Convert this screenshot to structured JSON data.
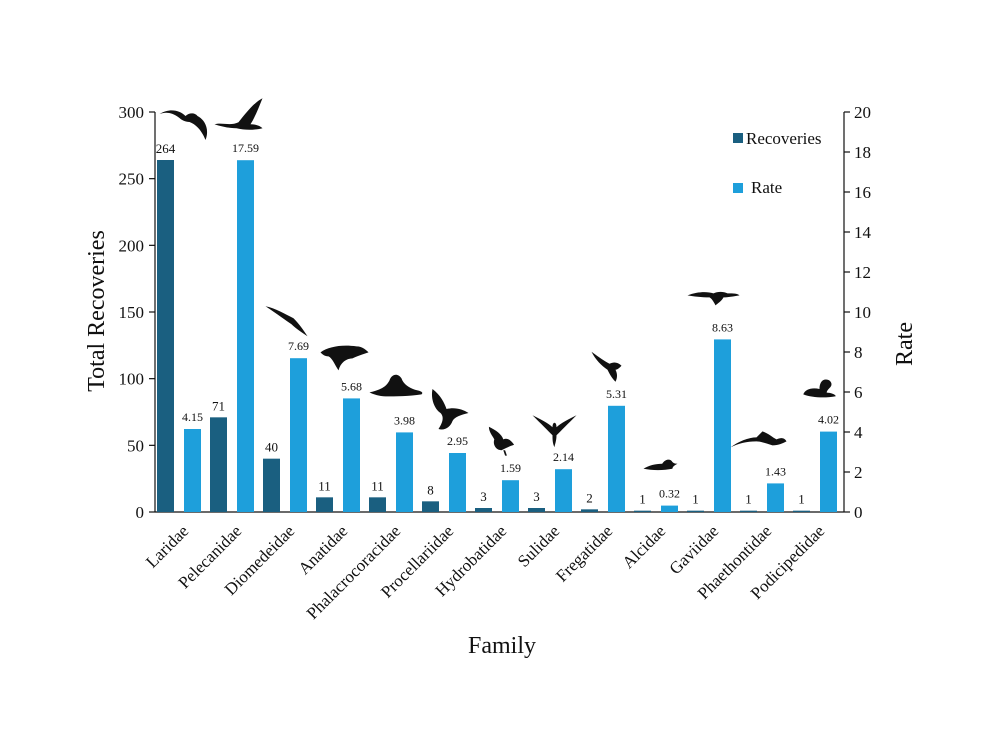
{
  "chart_data": {
    "type": "bar",
    "title": "",
    "xlabel": "Family",
    "ylabel": "Total Recoveries",
    "y2label": "Rate",
    "ylim": [
      0,
      300
    ],
    "y2lim": [
      0,
      20
    ],
    "yticks": [
      "0",
      "50",
      "100",
      "150",
      "200",
      "250",
      "300"
    ],
    "y2ticks": [
      "0",
      "2",
      "4",
      "6",
      "8",
      "10",
      "12",
      "14",
      "16",
      "18",
      "20"
    ],
    "legend_position": "top-right",
    "grid": false,
    "categories": [
      "Laridae",
      "Pelecanidae",
      "Diomedeidae",
      "Anatidae",
      "Phalacrocoracidae",
      "Procellariidae",
      "Hydrobatidae",
      "Sulidae",
      "Fregatidae",
      "Alcidae",
      "Gaviidae",
      "Phaethontidae",
      "Podicipedidae"
    ],
    "series": [
      {
        "name": "Recoveries",
        "axis": "left",
        "color": "#1a5f80",
        "values": [
          264,
          71,
          40,
          11,
          11,
          8,
          3,
          3,
          2,
          1,
          1,
          1,
          1
        ],
        "labels": [
          "264",
          "71",
          "40",
          "11",
          "11",
          "8",
          "3",
          "3",
          "2",
          "1",
          "1",
          "1",
          "1"
        ]
      },
      {
        "name": "Rate",
        "axis": "right",
        "color": "#1e9fdb",
        "values": [
          4.15,
          17.59,
          7.69,
          5.68,
          3.98,
          2.95,
          1.59,
          2.14,
          5.31,
          0.32,
          8.63,
          1.43,
          4.02
        ],
        "labels": [
          "4.15",
          "17.59",
          "7.69",
          "5.68",
          "3.98",
          "2.95",
          "1.59",
          "2.14",
          "5.31",
          "0.32",
          "8.63",
          "1.43",
          "4.02"
        ]
      }
    ],
    "icons": [
      "gull-silhouette-icon",
      "pelican-silhouette-icon",
      "albatross-silhouette-icon",
      "duck-silhouette-icon",
      "cormorant-silhouette-icon",
      "petrel-silhouette-icon",
      "storm-petrel-silhouette-icon",
      "booby-silhouette-icon",
      "frigatebird-silhouette-icon",
      "auk-silhouette-icon",
      "loon-silhouette-icon",
      "tropicbird-silhouette-icon",
      "grebe-silhouette-icon"
    ]
  }
}
